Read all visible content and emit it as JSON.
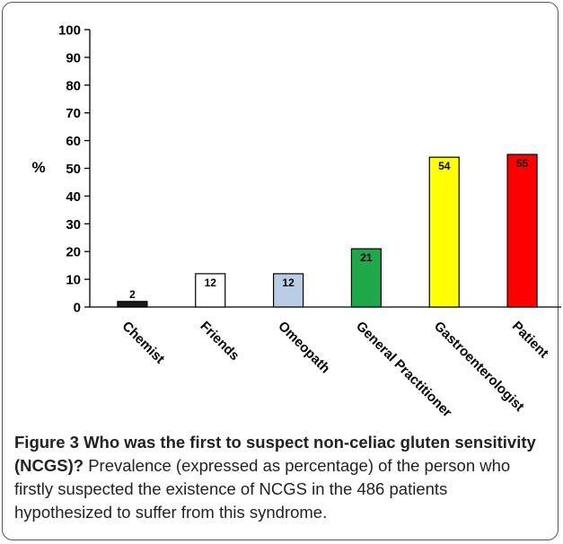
{
  "chart_data": {
    "type": "bar",
    "categories": [
      "Chemist",
      "Friends",
      "Omeopath",
      "General Practitioner",
      "Gastroenterologist",
      "Patient"
    ],
    "values": [
      2,
      12,
      12,
      21,
      54,
      55
    ],
    "value_labels": [
      "2",
      "12",
      "12",
      "21",
      "54",
      "55"
    ],
    "bar_colors": [
      "#1a1a1a",
      "#ffffff",
      "#b9cde5",
      "#1fa84a",
      "#ffff00",
      "#ff0000"
    ],
    "ylabel": "%",
    "ylim": [
      0,
      100
    ],
    "yticks": [
      0,
      10,
      20,
      30,
      40,
      50,
      60,
      70,
      80,
      90,
      100
    ],
    "ytick_labels": [
      "0",
      "10",
      "20",
      "30",
      "40",
      "50",
      "60",
      "70",
      "80",
      "90",
      "100"
    ],
    "grid": false
  },
  "caption": {
    "title": "Figure 3 Who was the first to suspect non-celiac gluten sensitivity (NCGS)?",
    "text": "Prevalence (expressed as percentage) of the person who firstly suspected the existence of NCGS in the 486 patients hypothesized to suffer from this syndrome."
  }
}
